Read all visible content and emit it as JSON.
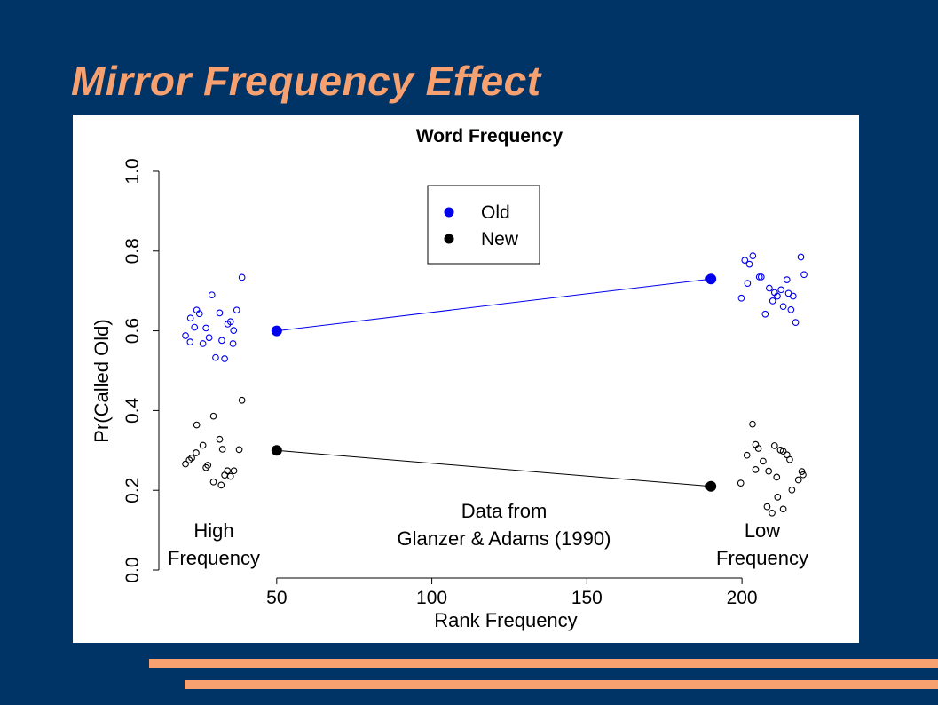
{
  "slide": {
    "title": "Mirror Frequency Effect",
    "accent_color": "#f7a070",
    "background_color": "#003366"
  },
  "chart_data": {
    "type": "scatter",
    "title": "Word Frequency",
    "xlabel": "Rank Frequency",
    "ylabel": "Pr(Called Old)",
    "xlim": [
      12,
      224
    ],
    "ylim": [
      -0.02,
      1.04
    ],
    "x_ticks": [
      50,
      100,
      150,
      200
    ],
    "y_ticks": [
      0.0,
      0.2,
      0.4,
      0.6,
      0.8,
      1.0
    ],
    "legend": {
      "placement": "top-center",
      "entries": [
        {
          "label": "Old",
          "color": "#0000ee"
        },
        {
          "label": "New",
          "color": "#000000"
        }
      ]
    },
    "annotations": [
      {
        "id": "high",
        "lines": [
          "High",
          "Frequency"
        ]
      },
      {
        "id": "source",
        "lines": [
          "Data from",
          "Glanzer & Adams (1990)"
        ]
      },
      {
        "id": "low",
        "lines": [
          "Low",
          "Frequency"
        ]
      }
    ],
    "series": [
      {
        "name": "Old",
        "color": "#0000ee",
        "means": [
          {
            "x": 50,
            "y": 0.6
          },
          {
            "x": 190,
            "y": 0.73
          }
        ],
        "points": [
          [
            38.8,
            0.734
          ],
          [
            29.1,
            0.69
          ],
          [
            24.2,
            0.652
          ],
          [
            25.1,
            0.643
          ],
          [
            31.6,
            0.645
          ],
          [
            37.1,
            0.652
          ],
          [
            22.2,
            0.632
          ],
          [
            35.1,
            0.623
          ],
          [
            34.2,
            0.617
          ],
          [
            23.5,
            0.609
          ],
          [
            27.2,
            0.607
          ],
          [
            36.1,
            0.601
          ],
          [
            20.6,
            0.588
          ],
          [
            28.2,
            0.583
          ],
          [
            32.3,
            0.576
          ],
          [
            22.1,
            0.572
          ],
          [
            26.2,
            0.568
          ],
          [
            35.9,
            0.568
          ],
          [
            30.3,
            0.533
          ],
          [
            33.2,
            0.53
          ],
          [
            219,
            0.785
          ],
          [
            203.5,
            0.788
          ],
          [
            200.9,
            0.777
          ],
          [
            202.4,
            0.767
          ],
          [
            220,
            0.741
          ],
          [
            205.6,
            0.735
          ],
          [
            206.2,
            0.735
          ],
          [
            214.5,
            0.728
          ],
          [
            201.8,
            0.719
          ],
          [
            208.8,
            0.707
          ],
          [
            212.6,
            0.703
          ],
          [
            210.5,
            0.696
          ],
          [
            215,
            0.694
          ],
          [
            211.4,
            0.687
          ],
          [
            216.5,
            0.687
          ],
          [
            199.8,
            0.682
          ],
          [
            209.9,
            0.675
          ],
          [
            213.3,
            0.661
          ],
          [
            215.8,
            0.653
          ],
          [
            207.5,
            0.642
          ],
          [
            217.3,
            0.621
          ]
        ]
      },
      {
        "name": "New",
        "color": "#000000",
        "means": [
          {
            "x": 50,
            "y": 0.3
          },
          {
            "x": 190,
            "y": 0.21
          }
        ],
        "points": [
          [
            38.8,
            0.426
          ],
          [
            29.6,
            0.386
          ],
          [
            24.2,
            0.364
          ],
          [
            31.6,
            0.328
          ],
          [
            26.2,
            0.313
          ],
          [
            32.5,
            0.303
          ],
          [
            37.9,
            0.302
          ],
          [
            24,
            0.294
          ],
          [
            22.6,
            0.281
          ],
          [
            21.8,
            0.276
          ],
          [
            20.6,
            0.266
          ],
          [
            27.8,
            0.263
          ],
          [
            27.2,
            0.257
          ],
          [
            34.1,
            0.249
          ],
          [
            36.2,
            0.249
          ],
          [
            33.2,
            0.238
          ],
          [
            35.1,
            0.235
          ],
          [
            29.6,
            0.221
          ],
          [
            32.1,
            0.213
          ],
          [
            203.4,
            0.366
          ],
          [
            204.4,
            0.315
          ],
          [
            210.5,
            0.312
          ],
          [
            205.3,
            0.305
          ],
          [
            212.4,
            0.301
          ],
          [
            213.3,
            0.298
          ],
          [
            214.5,
            0.289
          ],
          [
            201.6,
            0.288
          ],
          [
            215.4,
            0.277
          ],
          [
            206.8,
            0.273
          ],
          [
            204.4,
            0.252
          ],
          [
            208.6,
            0.248
          ],
          [
            219.3,
            0.247
          ],
          [
            219.7,
            0.239
          ],
          [
            211.2,
            0.233
          ],
          [
            218.2,
            0.226
          ],
          [
            199.6,
            0.218
          ],
          [
            216.1,
            0.201
          ],
          [
            211.5,
            0.183
          ],
          [
            208.1,
            0.159
          ],
          [
            213.3,
            0.153
          ],
          [
            209.7,
            0.143
          ]
        ]
      }
    ]
  }
}
